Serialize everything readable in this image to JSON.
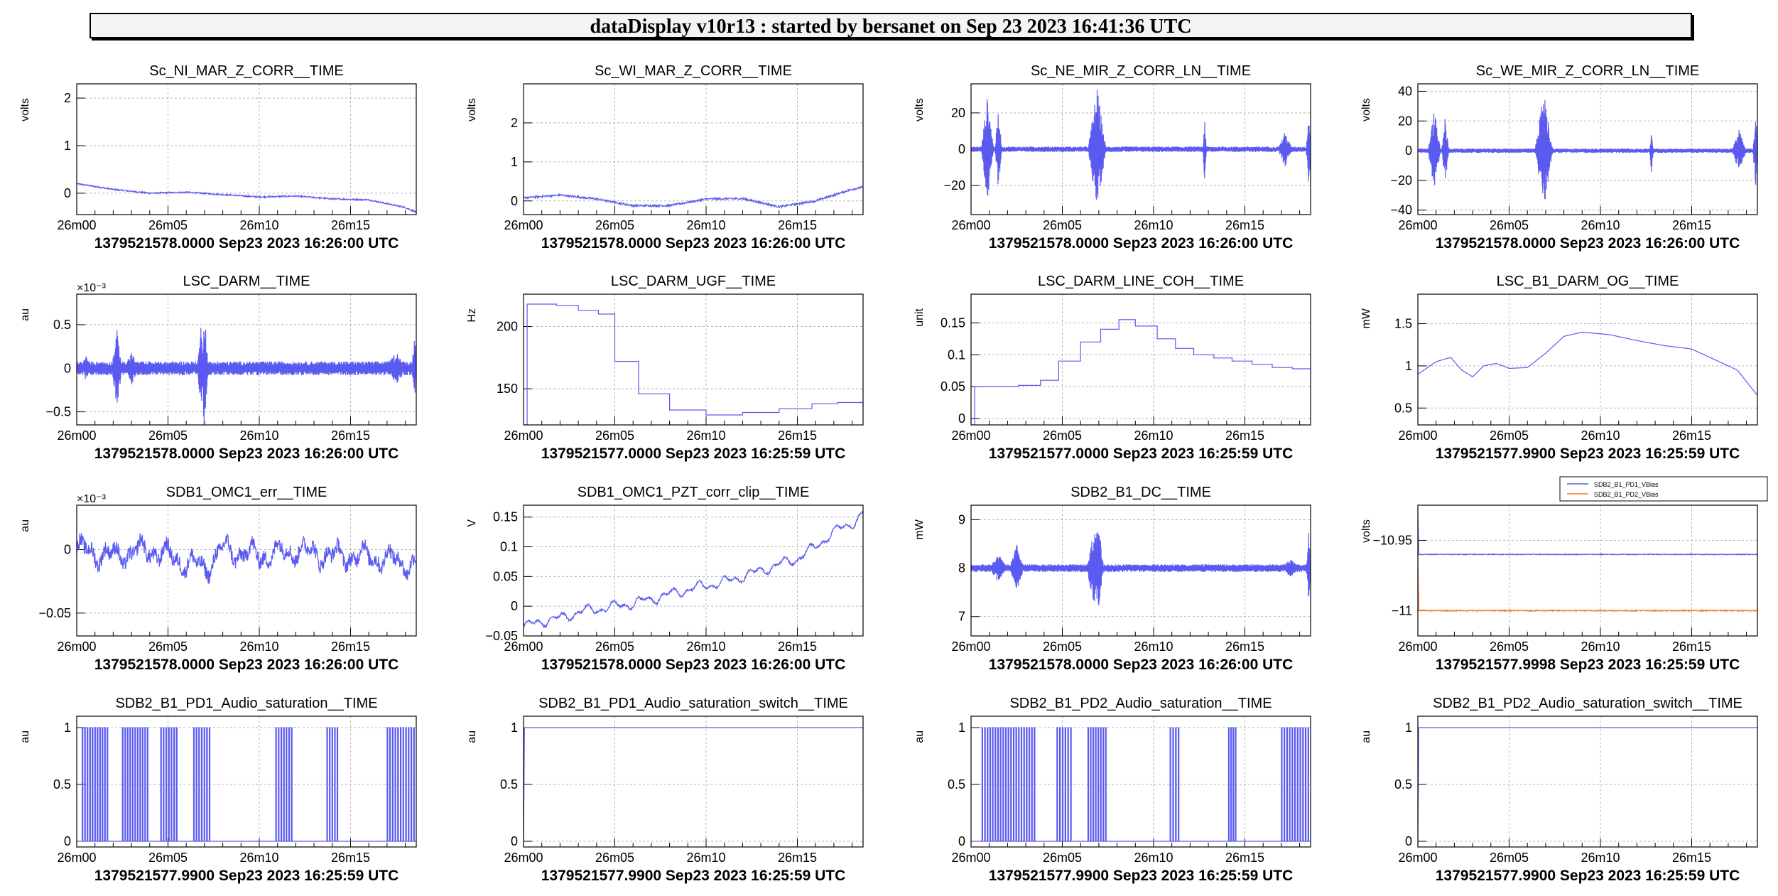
{
  "header": {
    "title": "dataDisplay v10r13 : started by bersanet on Sep 23 2023 16:41:36 UTC"
  },
  "colors": {
    "trace": "#5a5af0",
    "trace2": "#f07820",
    "grid": "#b4b4b4",
    "frame": "#000000"
  },
  "chart_data": [
    {
      "type": "line",
      "title": "Sc_NI_MAR_Z_CORR__TIME",
      "ylabel": "volts",
      "ylim": [
        -0.45,
        2.3
      ],
      "yticks": [
        {
          "v": 0,
          "t": "0"
        },
        {
          "v": 1,
          "t": "1"
        },
        {
          "v": 2,
          "t": "2"
        }
      ],
      "xticks": [
        "26m00",
        "26m05",
        "26m10",
        "26m15"
      ],
      "xlim": [
        0,
        18.6
      ],
      "footer": "1379521578.0000 Sep23 2023 16:26:00 UTC",
      "series": [
        {
          "shape": "drift",
          "x": [
            0,
            2,
            4,
            6,
            8,
            10,
            12,
            14,
            16,
            18,
            18.6
          ],
          "y": [
            0.2,
            0.08,
            0,
            0.02,
            -0.03,
            -0.08,
            -0.06,
            -0.12,
            -0.14,
            -0.3,
            -0.4
          ],
          "noise": 0.03
        }
      ]
    },
    {
      "type": "line",
      "title": "Sc_WI_MAR_Z_CORR__TIME",
      "ylabel": "volts",
      "ylim": [
        -0.35,
        3
      ],
      "yticks": [
        {
          "v": 0,
          "t": "0"
        },
        {
          "v": 1,
          "t": "1"
        },
        {
          "v": 2,
          "t": "2"
        }
      ],
      "xticks": [
        "26m00",
        "26m05",
        "26m10",
        "26m15"
      ],
      "xlim": [
        0,
        18.6
      ],
      "footer": "1379521578.0000 Sep23 2023 16:26:00 UTC",
      "series": [
        {
          "shape": "drift",
          "x": [
            0,
            2,
            4,
            6,
            8,
            10,
            12,
            14,
            16,
            18,
            18.6
          ],
          "y": [
            0.08,
            0.15,
            0.05,
            -0.12,
            -0.12,
            0.05,
            0.06,
            -0.15,
            0.0,
            0.3,
            0.35
          ],
          "noise": 0.05
        }
      ]
    },
    {
      "type": "line",
      "title": "Sc_NE_MIR_Z_CORR_LN__TIME",
      "ylabel": "volts",
      "ylim": [
        -36,
        36
      ],
      "yticks": [
        {
          "v": -20,
          "t": "−20"
        },
        {
          "v": 0,
          "t": "0"
        },
        {
          "v": 20,
          "t": "20"
        }
      ],
      "xticks": [
        "26m00",
        "26m05",
        "26m10",
        "26m15"
      ],
      "xlim": [
        0,
        18.6
      ],
      "footer": "1379521578.0000 Sep23 2023 16:26:00 UTC",
      "series": [
        {
          "shape": "bursts",
          "base": 0,
          "noise": 1.5,
          "bursts": [
            {
              "x": 0.9,
              "w": 0.35,
              "a": 30
            },
            {
              "x": 1.5,
              "w": 0.2,
              "a": 22
            },
            {
              "x": 6.9,
              "w": 0.5,
              "a": 34
            },
            {
              "x": 12.8,
              "w": 0.1,
              "a": 20
            },
            {
              "x": 17.2,
              "w": 0.4,
              "a": 10
            },
            {
              "x": 18.5,
              "w": 0.15,
              "a": 22
            }
          ]
        }
      ]
    },
    {
      "type": "line",
      "title": "Sc_WE_MIR_Z_CORR_LN__TIME",
      "ylabel": "volts",
      "ylim": [
        -43,
        45
      ],
      "yticks": [
        {
          "v": -40,
          "t": "−40"
        },
        {
          "v": -20,
          "t": "−20"
        },
        {
          "v": 0,
          "t": "0"
        },
        {
          "v": 20,
          "t": "20"
        },
        {
          "v": 40,
          "t": "40"
        }
      ],
      "xticks": [
        "26m00",
        "26m05",
        "26m10",
        "26m15"
      ],
      "xlim": [
        0,
        18.6
      ],
      "footer": "1379521578.0000 Sep23 2023 16:26:00 UTC",
      "series": [
        {
          "shape": "bursts",
          "base": 0,
          "noise": 1.5,
          "bursts": [
            {
              "x": 0.9,
              "w": 0.35,
              "a": 28
            },
            {
              "x": 1.5,
              "w": 0.2,
              "a": 24
            },
            {
              "x": 6.9,
              "w": 0.5,
              "a": 40
            },
            {
              "x": 12.8,
              "w": 0.1,
              "a": 18
            },
            {
              "x": 17.6,
              "w": 0.4,
              "a": 15
            },
            {
              "x": 18.5,
              "w": 0.15,
              "a": 25
            }
          ]
        }
      ]
    },
    {
      "type": "line",
      "title": "LSC_DARM__TIME",
      "ylabel": "au",
      "multiplier": "×10⁻³",
      "ylim": [
        -0.65,
        0.85
      ],
      "yticks": [
        {
          "v": -0.5,
          "t": "−0.5"
        },
        {
          "v": 0,
          "t": "0"
        },
        {
          "v": 0.5,
          "t": "0.5"
        }
      ],
      "xticks": [
        "26m00",
        "26m05",
        "26m10",
        "26m15"
      ],
      "xlim": [
        0,
        18.6
      ],
      "footer": "1379521578.0000 Sep23 2023 16:26:00 UTC",
      "series": [
        {
          "shape": "bursts",
          "base": 0,
          "noise": 0.08,
          "bursts": [
            {
              "x": 0.5,
              "w": 0.3,
              "a": 0.15
            },
            {
              "x": 2.2,
              "w": 0.3,
              "a": 0.45
            },
            {
              "x": 3.0,
              "w": 0.4,
              "a": 0.2
            },
            {
              "x": 6.8,
              "w": 0.2,
              "a": 0.5
            },
            {
              "x": 7.0,
              "w": 0.2,
              "a": 0.75
            },
            {
              "x": 17.5,
              "w": 0.6,
              "a": 0.2
            },
            {
              "x": 18.5,
              "w": 0.15,
              "a": 0.4
            }
          ]
        }
      ]
    },
    {
      "type": "line",
      "title": "LSC_DARM_UGF__TIME",
      "ylabel": "Hz",
      "ylim": [
        121,
        226
      ],
      "yticks": [
        {
          "v": 150,
          "t": "150"
        },
        {
          "v": 200,
          "t": "200"
        }
      ],
      "xticks": [
        "26m00",
        "26m05",
        "26m10",
        "26m15"
      ],
      "xlim": [
        0,
        18.6
      ],
      "footer": "1379521577.0000 Sep23 2023 16:25:59 UTC",
      "series": [
        {
          "shape": "step",
          "x": [
            0,
            0.2,
            1.8,
            3.0,
            4.1,
            5.0,
            6.3,
            8.0,
            10.0,
            12.0,
            14.0,
            15.8,
            17.2,
            18.6
          ],
          "y": [
            121,
            218,
            217,
            213,
            210,
            172,
            146,
            133,
            129,
            131,
            134,
            138,
            139,
            136
          ]
        }
      ]
    },
    {
      "type": "line",
      "title": "LSC_DARM_LINE_COH__TIME",
      "ylabel": "unit",
      "ylim": [
        -0.01,
        0.195
      ],
      "yticks": [
        {
          "v": 0,
          "t": "0"
        },
        {
          "v": 0.05,
          "t": "0.05"
        },
        {
          "v": 0.1,
          "t": "0.1"
        },
        {
          "v": 0.15,
          "t": "0.15"
        }
      ],
      "xticks": [
        "26m00",
        "26m05",
        "26m10",
        "26m15"
      ],
      "xlim": [
        0,
        18.6
      ],
      "footer": "1379521577.0000 Sep23 2023 16:25:59 UTC",
      "series": [
        {
          "shape": "step",
          "x": [
            0,
            0.2,
            2.6,
            3.8,
            4.8,
            6.0,
            7.1,
            8.1,
            9.0,
            10.2,
            11.2,
            12.2,
            13.3,
            14.3,
            15.4,
            16.5,
            17.6,
            18.6
          ],
          "y": [
            -0.01,
            0.05,
            0.052,
            0.06,
            0.09,
            0.12,
            0.14,
            0.155,
            0.145,
            0.125,
            0.11,
            0.1,
            0.095,
            0.09,
            0.085,
            0.08,
            0.078,
            0.078
          ]
        }
      ]
    },
    {
      "type": "line",
      "title": "LSC_B1_DARM_OG__TIME",
      "ylabel": "mW",
      "ylim": [
        0.3,
        1.85
      ],
      "yticks": [
        {
          "v": 0.5,
          "t": "0.5"
        },
        {
          "v": 1,
          "t": "1"
        },
        {
          "v": 1.5,
          "t": "1.5"
        }
      ],
      "xticks": [
        "26m00",
        "26m05",
        "26m10",
        "26m15"
      ],
      "xlim": [
        0,
        18.6
      ],
      "footer": "1379521577.9900 Sep23 2023 16:25:59 UTC",
      "series": [
        {
          "shape": "smooth",
          "x": [
            0,
            1.0,
            1.8,
            2.4,
            3.0,
            3.6,
            4.3,
            5.0,
            6.0,
            7.0,
            8.0,
            9.0,
            10.5,
            12.0,
            13.5,
            15.0,
            16.5,
            17.5,
            18.6
          ],
          "y": [
            0.9,
            1.05,
            1.1,
            0.95,
            0.87,
            1.0,
            1.03,
            0.97,
            0.98,
            1.15,
            1.35,
            1.4,
            1.37,
            1.3,
            1.24,
            1.2,
            1.05,
            0.95,
            0.65
          ]
        }
      ]
    },
    {
      "type": "line",
      "title": "SDB1_OMC1_err__TIME",
      "ylabel": "au",
      "multiplier": "×10⁻³",
      "ylim": [
        -0.068,
        0.035
      ],
      "yticks": [
        {
          "v": -0.05,
          "t": "−0.05"
        },
        {
          "v": 0,
          "t": "0"
        }
      ],
      "xticks": [
        "26m00",
        "26m05",
        "26m10",
        "26m15"
      ],
      "xlim": [
        0,
        18.6
      ],
      "footer": "1379521578.0000 Sep23 2023 16:26:00 UTC",
      "series": [
        {
          "shape": "wavy",
          "base": 0,
          "amp": 0.01,
          "noise": 0.006,
          "x": [
            0,
            2,
            4,
            6,
            7,
            8,
            10,
            12,
            14,
            16,
            18,
            18.6
          ],
          "y": [
            0,
            -0.005,
            0,
            -0.01,
            -0.015,
            0,
            -0.005,
            0,
            -0.005,
            -0.005,
            -0.01,
            -0.012
          ]
        }
      ]
    },
    {
      "type": "line",
      "title": "SDB1_OMC1_PZT_corr_clip__TIME",
      "ylabel": "V",
      "ylim": [
        -0.05,
        0.17
      ],
      "yticks": [
        {
          "v": -0.05,
          "t": "−0.05"
        },
        {
          "v": 0,
          "t": "0"
        },
        {
          "v": 0.05,
          "t": "0.05"
        },
        {
          "v": 0.1,
          "t": "0.1"
        },
        {
          "v": 0.15,
          "t": "0.15"
        }
      ],
      "xticks": [
        "26m00",
        "26m05",
        "26m10",
        "26m15"
      ],
      "xlim": [
        0,
        18.6
      ],
      "footer": "1379521578.0000 Sep23 2023 16:26:00 UTC",
      "series": [
        {
          "shape": "wavy",
          "amp": 0.01,
          "noise": 0.002,
          "x": [
            0,
            1,
            2,
            3,
            4,
            5,
            6,
            7,
            8,
            9,
            10,
            11,
            12,
            13,
            14,
            15,
            16,
            17,
            18,
            18.6
          ],
          "y": [
            -0.035,
            -0.025,
            -0.02,
            -0.01,
            -0.005,
            0,
            0.005,
            0.012,
            0.02,
            0.028,
            0.035,
            0.04,
            0.05,
            0.06,
            0.07,
            0.08,
            0.1,
            0.125,
            0.14,
            0.155
          ]
        }
      ]
    },
    {
      "type": "line",
      "title": "SDB2_B1_DC__TIME",
      "ylabel": "mW",
      "ylim": [
        6.6,
        9.3
      ],
      "yticks": [
        {
          "v": 7,
          "t": "7"
        },
        {
          "v": 8,
          "t": "8"
        },
        {
          "v": 9,
          "t": "9"
        }
      ],
      "xticks": [
        "26m00",
        "26m05",
        "26m10",
        "26m15"
      ],
      "xlim": [
        0,
        18.6
      ],
      "footer": "1379521578.0000 Sep23 2023 16:26:00 UTC",
      "series": [
        {
          "shape": "bursts",
          "base": 8,
          "noise": 0.08,
          "bursts": [
            {
              "x": 1.5,
              "w": 0.5,
              "a": 0.3
            },
            {
              "x": 2.5,
              "w": 0.4,
              "a": 0.5
            },
            {
              "x": 6.8,
              "w": 0.5,
              "a": 0.9
            },
            {
              "x": 7.0,
              "w": 0.2,
              "a": 1.2
            },
            {
              "x": 17.5,
              "w": 0.6,
              "a": 0.2
            },
            {
              "x": 18.5,
              "w": 0.15,
              "a": 0.8
            }
          ]
        }
      ]
    },
    {
      "type": "line",
      "title": "",
      "ylabel": "volts",
      "ylim": [
        -11.018,
        -10.925
      ],
      "yticks": [
        {
          "v": -11,
          "t": "−11"
        },
        {
          "v": -10.95,
          "t": "−10.95"
        }
      ],
      "xticks": [
        "26m00",
        "26m05",
        "26m10",
        "26m15"
      ],
      "xlim": [
        0,
        18.6
      ],
      "footer": "1379521577.9998 Sep23 2023 16:25:59 UTC",
      "legend": [
        "SDB2_B1_PD1_VBias",
        "SDB2_B1_PD2_VBias"
      ],
      "series": [
        {
          "name": "SDB2_B1_PD1_VBias",
          "shape": "flat",
          "base": -10.96,
          "noise": 0.0006
        },
        {
          "name": "SDB2_B1_PD2_VBias",
          "shape": "flat",
          "base": -11.0,
          "noise": 0.0008,
          "color2": true
        }
      ]
    },
    {
      "type": "line",
      "title": "SDB2_B1_PD1_Audio_saturation__TIME",
      "ylabel": "au",
      "ylim": [
        -0.05,
        1.1
      ],
      "yticks": [
        {
          "v": 0,
          "t": "0"
        },
        {
          "v": 0.5,
          "t": "0.5"
        },
        {
          "v": 1,
          "t": "1"
        }
      ],
      "xticks": [
        "26m00",
        "26m05",
        "26m10",
        "26m15"
      ],
      "xlim": [
        0,
        18.6
      ],
      "footer": "1379521577.9900 Sep23 2023 16:25:59 UTC",
      "series": [
        {
          "shape": "binary",
          "regions": [
            [
              0.3,
              1.8
            ],
            [
              2.5,
              4.0
            ],
            [
              4.6,
              5.6
            ],
            [
              6.4,
              7.4
            ],
            [
              10.9,
              11.9
            ],
            [
              13.7,
              14.4
            ],
            [
              17.0,
              18.6
            ]
          ]
        }
      ]
    },
    {
      "type": "line",
      "title": "SDB2_B1_PD1_Audio_saturation_switch__TIME",
      "ylabel": "au",
      "ylim": [
        -0.05,
        1.1
      ],
      "yticks": [
        {
          "v": 0,
          "t": "0"
        },
        {
          "v": 0.5,
          "t": "0.5"
        },
        {
          "v": 1,
          "t": "1"
        }
      ],
      "xticks": [
        "26m00",
        "26m05",
        "26m10",
        "26m15"
      ],
      "xlim": [
        0,
        18.6
      ],
      "footer": "1379521577.9900 Sep23 2023 16:25:59 UTC",
      "series": [
        {
          "shape": "constant",
          "base": 1
        }
      ]
    },
    {
      "type": "line",
      "title": "SDB2_B1_PD2_Audio_saturation__TIME",
      "ylabel": "au",
      "ylim": [
        -0.05,
        1.1
      ],
      "yticks": [
        {
          "v": 0,
          "t": "0"
        },
        {
          "v": 0.5,
          "t": "0.5"
        },
        {
          "v": 1,
          "t": "1"
        }
      ],
      "xticks": [
        "26m00",
        "26m05",
        "26m10",
        "26m15"
      ],
      "xlim": [
        0,
        18.6
      ],
      "footer": "1379521577.9900 Sep23 2023 16:25:59 UTC",
      "series": [
        {
          "shape": "binary",
          "regions": [
            [
              0.6,
              3.6
            ],
            [
              4.7,
              5.6
            ],
            [
              6.4,
              7.5
            ],
            [
              10.9,
              11.5
            ],
            [
              14.1,
              14.6
            ],
            [
              17.0,
              18.6
            ]
          ]
        }
      ]
    },
    {
      "type": "line",
      "title": "SDB2_B1_PD2_Audio_saturation_switch__TIME",
      "ylabel": "au",
      "ylim": [
        -0.05,
        1.1
      ],
      "yticks": [
        {
          "v": 0,
          "t": "0"
        },
        {
          "v": 0.5,
          "t": "0.5"
        },
        {
          "v": 1,
          "t": "1"
        }
      ],
      "xticks": [
        "26m00",
        "26m05",
        "26m10",
        "26m15"
      ],
      "xlim": [
        0,
        18.6
      ],
      "footer": "1379521577.9900 Sep23 2023 16:25:59 UTC",
      "series": [
        {
          "shape": "constant",
          "base": 1
        }
      ]
    }
  ]
}
